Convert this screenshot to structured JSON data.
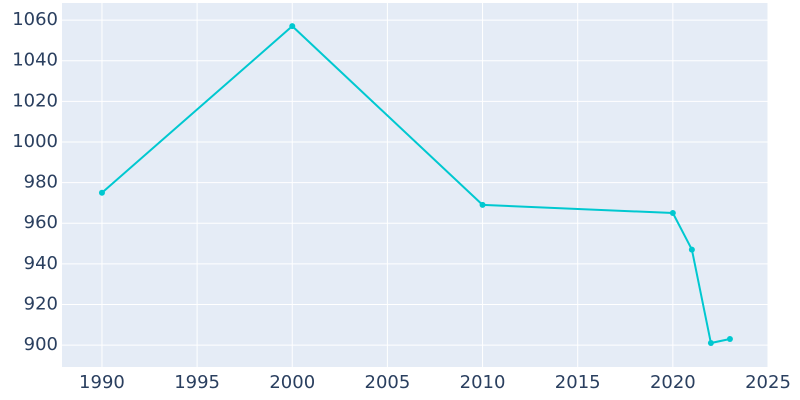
{
  "chart_data": {
    "type": "line",
    "x": [
      1990,
      2000,
      2010,
      2020,
      2021,
      2022,
      2023
    ],
    "series": [
      {
        "color": "#00c8d0",
        "values": [
          975,
          1057,
          969,
          965,
          947,
          901,
          903
        ]
      }
    ],
    "xlim": [
      1987.9,
      2025
    ],
    "xticks": [
      1990,
      1995,
      2000,
      2005,
      2010,
      2015,
      2020,
      2025
    ],
    "ylim": [
      889.2,
      1068.4
    ],
    "yticks": [
      900,
      920,
      940,
      960,
      980,
      1000,
      1020,
      1040,
      1060
    ],
    "grid": true
  }
}
